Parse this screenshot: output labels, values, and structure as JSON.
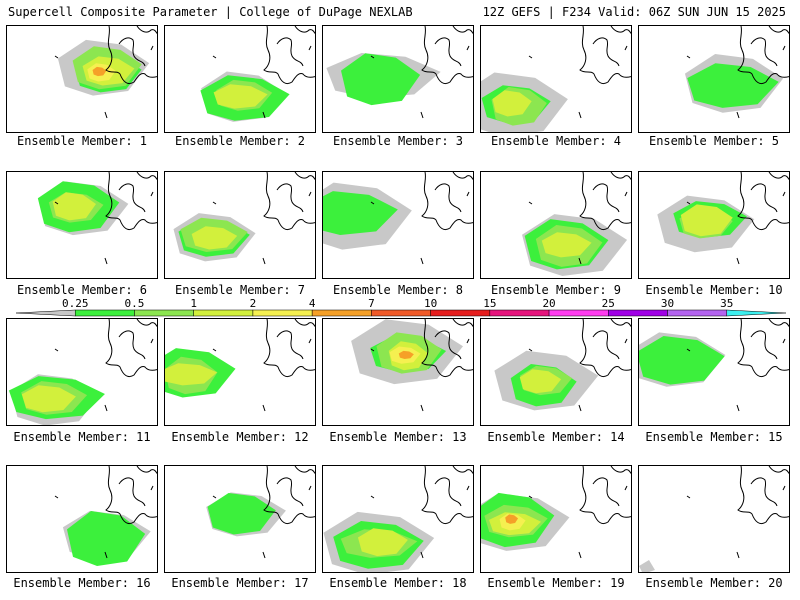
{
  "header": {
    "title": "Supercell Composite Parameter | College of DuPage NEXLAB",
    "run_info": "12Z GEFS | F234 Valid: 06Z SUN JUN 15 2025"
  },
  "member_label_prefix": "Ensemble Member:",
  "members": [
    {
      "number": "1",
      "intensity": "high"
    },
    {
      "number": "2",
      "intensity": "moderate"
    },
    {
      "number": "3",
      "intensity": "light"
    },
    {
      "number": "4",
      "intensity": "moderate"
    },
    {
      "number": "5",
      "intensity": "light"
    },
    {
      "number": "6",
      "intensity": "moderate"
    },
    {
      "number": "7",
      "intensity": "moderate"
    },
    {
      "number": "8",
      "intensity": "light"
    },
    {
      "number": "9",
      "intensity": "moderate"
    },
    {
      "number": "10",
      "intensity": "moderate"
    },
    {
      "number": "11",
      "intensity": "moderate"
    },
    {
      "number": "12",
      "intensity": "moderate"
    },
    {
      "number": "13",
      "intensity": "high"
    },
    {
      "number": "14",
      "intensity": "moderate"
    },
    {
      "number": "15",
      "intensity": "light"
    },
    {
      "number": "16",
      "intensity": "light"
    },
    {
      "number": "17",
      "intensity": "light"
    },
    {
      "number": "18",
      "intensity": "moderate"
    },
    {
      "number": "19",
      "intensity": "high"
    },
    {
      "number": "20",
      "intensity": "none"
    }
  ],
  "colorbar": {
    "ticks": [
      "0.25",
      "0.5",
      "1",
      "2",
      "4",
      "7",
      "10",
      "15",
      "20",
      "25",
      "30",
      "35"
    ],
    "colors": [
      "#c8c8c8",
      "#3cf03c",
      "#8ce650",
      "#d2f03c",
      "#f5f050",
      "#f5a028",
      "#f05a28",
      "#e61e1e",
      "#e6147d",
      "#ff3cf0",
      "#a000e6",
      "#b464f0",
      "#3cf0f0"
    ]
  }
}
